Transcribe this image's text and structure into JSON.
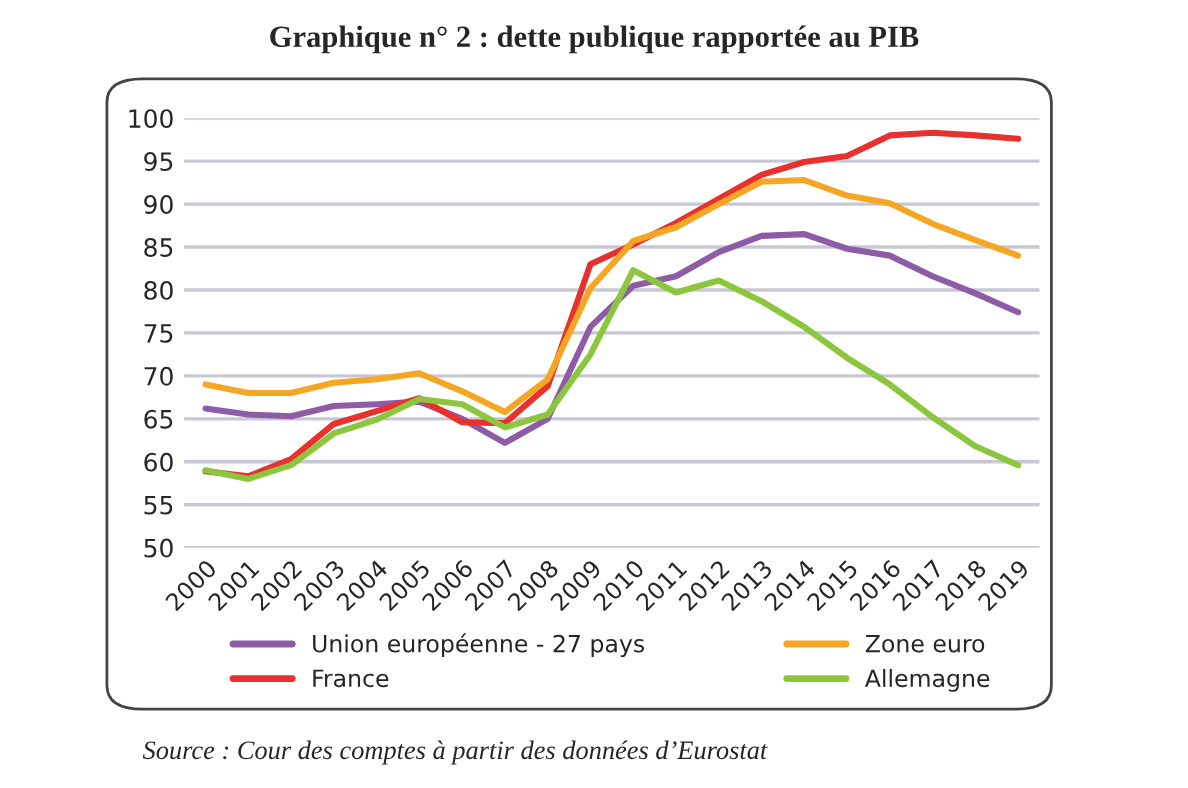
{
  "chart_data": {
    "type": "line",
    "title": "Graphique n° 2 : dette publique rapportée au PIB",
    "categories": [
      "2000",
      "2001",
      "2002",
      "2003",
      "2004",
      "2005",
      "2006",
      "2007",
      "2008",
      "2009",
      "2010",
      "2011",
      "2012",
      "2013",
      "2014",
      "2015",
      "2016",
      "2017",
      "2018",
      "2019"
    ],
    "series": [
      {
        "name": "Union européenne - 27 pays",
        "color": "#8e5ba6",
        "values": [
          66.2,
          65.5,
          65.3,
          66.5,
          66.7,
          67,
          65,
          62.2,
          65,
          75.7,
          80.5,
          81.6,
          84.4,
          86.3,
          86.5,
          84.8,
          84,
          81.6,
          79.6,
          77.4
        ]
      },
      {
        "name": "France",
        "color": "#e8312f",
        "values": [
          58.9,
          58.3,
          60.3,
          64.4,
          65.9,
          67.4,
          64.6,
          64.5,
          68.8,
          83,
          85.3,
          87.8,
          90.6,
          93.4,
          94.9,
          95.6,
          98,
          98.3,
          98,
          97.6
        ]
      },
      {
        "name": "Zone euro",
        "color": "#f5a623",
        "values": [
          69,
          68,
          68,
          69.2,
          69.6,
          70.3,
          68.2,
          65.8,
          69.6,
          80.2,
          85.7,
          87.3,
          90,
          92.6,
          92.8,
          91,
          90.1,
          87.7,
          85.8,
          84
        ]
      },
      {
        "name": "Allemagne",
        "color": "#8cc63e",
        "values": [
          59,
          58,
          59.6,
          63.3,
          64.9,
          67.3,
          66.7,
          64,
          65.5,
          72.5,
          82.3,
          79.7,
          81.1,
          78.7,
          75.7,
          72.1,
          69,
          65.2,
          61.8,
          59.6
        ]
      }
    ],
    "ylim": [
      50,
      100
    ],
    "yticks": [
      50,
      55,
      60,
      65,
      70,
      75,
      80,
      85,
      90,
      95,
      100
    ],
    "grid": "y",
    "legend": "bottom",
    "marker": "none",
    "line_style": "solid",
    "annotations": [
      "Source : Cour des comptes à partir des données d’Eurostat"
    ]
  }
}
